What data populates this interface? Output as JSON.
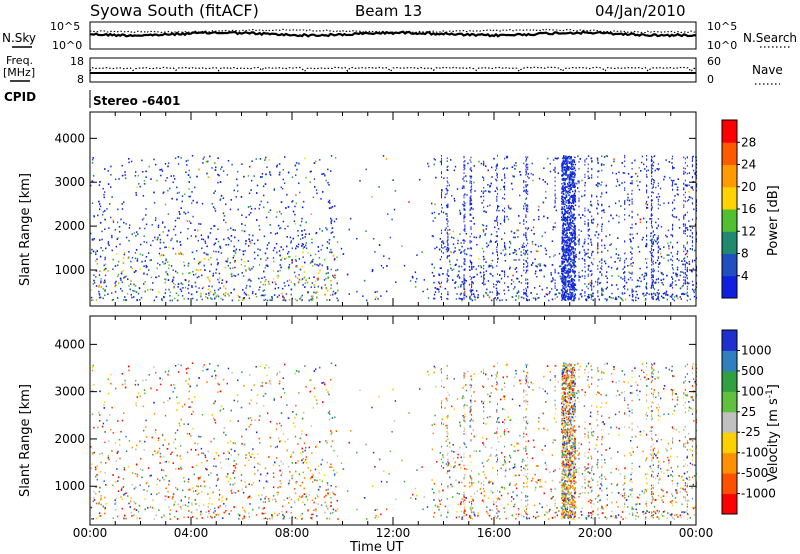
{
  "header": {
    "station": "Syowa South (fitACF)",
    "beam": "Beam 13",
    "date": "04/Jan/2010"
  },
  "panels": {
    "nsky_label": "N.Sky",
    "nsky_ticks": [
      "10^5",
      "10^0"
    ],
    "nsearch_label": "N.Search",
    "nsearch_ticks": [
      "10^5",
      "10^0"
    ],
    "freq_label_1": "Freq.",
    "freq_label_2": "[MHz]",
    "freq_ticks": [
      "18",
      "8"
    ],
    "nave_label": "Nave",
    "nave_ticks": [
      "60",
      "0"
    ],
    "cpid_label": "CPID",
    "cpid_value": "Stereo -6401"
  },
  "chart_data": [
    {
      "type": "heatmap",
      "title": "",
      "xlabel": "Time UT",
      "ylabel": "Slant Range [km]",
      "xlim": [
        0,
        24
      ],
      "ylim": [
        180,
        4600
      ],
      "xticks": [
        "00:00",
        "04:00",
        "08:00",
        "12:00",
        "16:00",
        "20:00",
        "00:00"
      ],
      "yticks": [
        "1000",
        "2000",
        "3000",
        "4000"
      ],
      "colorbar": {
        "label": "Power [dB]",
        "ticks": [
          "4",
          "8",
          "12",
          "16",
          "20",
          "24",
          "28"
        ],
        "colors": [
          "#1020e0",
          "#2050c0",
          "#208a70",
          "#50c030",
          "#ffd200",
          "#ff9a00",
          "#ff5a00",
          "#ff0000"
        ]
      },
      "features": {
        "data_gap_hours": [
          9.8,
          13.5
        ],
        "strong_scatter_hour": 18.9,
        "dominant_range_km": [
          300,
          3600
        ]
      }
    },
    {
      "type": "heatmap",
      "title": "",
      "xlabel": "Time UT",
      "ylabel": "Slant Range [km]",
      "xlim": [
        0,
        24
      ],
      "ylim": [
        180,
        4600
      ],
      "xticks": [
        "00:00",
        "04:00",
        "08:00",
        "12:00",
        "16:00",
        "20:00",
        "00:00"
      ],
      "yticks": [
        "1000",
        "2000",
        "3000",
        "4000"
      ],
      "colorbar": {
        "label": "Velocity [m s^-1]",
        "ticks": [
          "1000",
          "500",
          "100",
          "25",
          "-25",
          "-100",
          "-500",
          "-1000"
        ],
        "colors": [
          "#2030d0",
          "#3080c0",
          "#30a040",
          "#60c040",
          "#c0c0c0",
          "#ffd000",
          "#ff9000",
          "#ff5000",
          "#ff0000"
        ]
      }
    }
  ],
  "xaxis_title": "Time UT",
  "ylabel": "Slant Range [km]",
  "power_label": "Power [dB]",
  "velocity_label": "Velocity [m s",
  "velocity_unit_tail": "]",
  "velocity_exp": "-1"
}
